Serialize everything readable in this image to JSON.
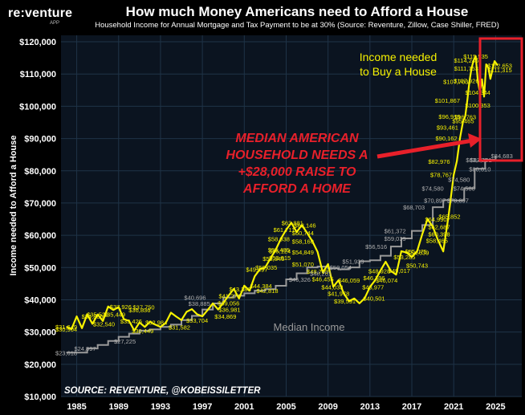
{
  "header": {
    "brand": "re:venture",
    "brand_sub": "APP",
    "title": "How much Money Americans need to Afford a House",
    "subtitle": "Household Income for Annual Mortgage and Tax Payment to be at 30% (Source: Reventure, Zillow, Case Shiller, FRED)"
  },
  "colors": {
    "background": "#000000",
    "plot_background": "#0b1420",
    "grid": "#1f3347",
    "income_needed": "#f7f200",
    "median_income": "#9a9a9a",
    "annotation_red": "#e8202a",
    "highlight_box": "#e8202a"
  },
  "chart_data": {
    "type": "line",
    "title": "How much Money Americans need to Afford a House",
    "ylabel": "Income needed to Afford a House",
    "xlabel": "",
    "xlim": [
      1983.5,
      2027.5
    ],
    "ylim": [
      10000,
      122000
    ],
    "x_ticks": [
      "1985",
      "1989",
      "1993",
      "1997",
      "2001",
      "2005",
      "2009",
      "2013",
      "2017",
      "2021",
      "2025"
    ],
    "y_ticks": [
      "$10,000",
      "$20,000",
      "$30,000",
      "$40,000",
      "$50,000",
      "$60,000",
      "$70,000",
      "$80,000",
      "$90,000",
      "$100,000",
      "$110,000",
      "$120,000"
    ],
    "grid": true,
    "series": [
      {
        "name": "Income needed to Buy a House",
        "x": [
          1984.0,
          1984.5,
          1985.0,
          1985.5,
          1986.0,
          1986.5,
          1987.0,
          1987.5,
          1988.0,
          1988.5,
          1989.0,
          1989.5,
          1990.0,
          1990.5,
          1991.0,
          1991.5,
          1992.0,
          1992.5,
          1993.0,
          1993.5,
          1994.0,
          1994.5,
          1995.0,
          1995.5,
          1996.0,
          1996.5,
          1997.0,
          1997.5,
          1998.0,
          1998.5,
          1999.0,
          1999.5,
          2000.0,
          2000.5,
          2001.0,
          2001.5,
          2002.0,
          2002.5,
          2003.0,
          2003.5,
          2004.0,
          2004.5,
          2005.0,
          2005.5,
          2006.0,
          2006.5,
          2007.0,
          2007.5,
          2008.0,
          2008.5,
          2009.0,
          2009.5,
          2010.0,
          2010.5,
          2011.0,
          2011.5,
          2012.0,
          2012.5,
          2013.0,
          2013.5,
          2014.0,
          2014.5,
          2015.0,
          2015.5,
          2016.0,
          2016.5,
          2017.0,
          2017.5,
          2018.0,
          2018.5,
          2019.0,
          2019.5,
          2020.0,
          2020.5,
          2021.0,
          2021.3,
          2021.6,
          2021.9,
          2022.1,
          2022.3,
          2022.5,
          2022.7,
          2022.9,
          2023.1,
          2023.3,
          2023.5,
          2023.7,
          2023.9,
          2024.1,
          2024.3,
          2024.5,
          2024.7,
          2024.9,
          2025.2
        ],
        "values": [
          31649,
          30904,
          34855,
          31200,
          35528,
          32540,
          35449,
          33426,
          37926,
          36836,
          37750,
          34000,
          33426,
          30449,
          32984,
          31582,
          33200,
          32300,
          31582,
          32800,
          36000,
          34800,
          33704,
          36300,
          37100,
          35500,
          34869,
          36800,
          38885,
          36981,
          39056,
          41274,
          43388,
          40400,
          44384,
          42818,
          47300,
          49497,
          50035,
          52845,
          55486,
          58938,
          61711,
          63881,
          61000,
          63146,
          60744,
          58160,
          54849,
          48455,
          51070,
          44033,
          46059,
          41978,
          39591,
          40400,
          38900,
          40501,
          43977,
          46074,
          49017,
          51800,
          48928,
          47800,
          55075,
          54639,
          53285,
          55000,
          60398,
          64990,
          62687,
          58465,
          55000,
          65852,
          78767,
          82976,
          90162,
          95465,
          96919,
          101867,
          107703,
          111753,
          114246,
          115535,
          107926,
          104344,
          108353,
          103000,
          113000,
          112000,
          108500,
          111315,
          114000,
          112653
        ]
      },
      {
        "name": "Median Income",
        "x": [
          1984.0,
          1985.0,
          1986.0,
          1987.0,
          1988.0,
          1989.0,
          1990.0,
          1991.0,
          1992.0,
          1993.0,
          1994.0,
          1995.0,
          1996.0,
          1997.0,
          1998.0,
          1999.0,
          2000.0,
          2001.0,
          2002.0,
          2003.0,
          2004.0,
          2005.0,
          2006.0,
          2007.0,
          2008.0,
          2009.0,
          2010.0,
          2011.0,
          2012.0,
          2013.0,
          2014.0,
          2015.0,
          2016.0,
          2017.0,
          2018.0,
          2019.0,
          2020.0,
          2021.0,
          2022.0,
          2023.0,
          2024.0,
          2025.0
        ],
        "values": [
          23618,
          23618,
          24897,
          26000,
          27225,
          28500,
          29500,
          30449,
          30800,
          31582,
          32300,
          33704,
          35000,
          36981,
          38885,
          40696,
          41274,
          42000,
          42818,
          43300,
          44334,
          46326,
          48201,
          50054,
          50303,
          49777,
          49445,
          50054,
          51939,
          52250,
          53657,
          56516,
          59039,
          61372,
          63179,
          68703,
          70897,
          70784,
          74580,
          80610,
          83431,
          84683
        ]
      }
    ],
    "data_labels": [
      {
        "x": 1984.0,
        "y": 31649,
        "text": "$31,649",
        "color": "yellow"
      },
      {
        "x": 1984.0,
        "y": 30904,
        "text": "$30,904",
        "color": "yellow"
      },
      {
        "x": 1986.5,
        "y": 34855,
        "text": "$34,855",
        "color": "yellow"
      },
      {
        "x": 1987.0,
        "y": 35528,
        "text": "$35,528",
        "color": "yellow"
      },
      {
        "x": 1988.6,
        "y": 35449,
        "text": "$35,449",
        "color": "yellow"
      },
      {
        "x": 1987.6,
        "y": 32540,
        "text": "$32,540",
        "color": "yellow"
      },
      {
        "x": 1990.2,
        "y": 33426,
        "text": "$33,426",
        "color": "yellow"
      },
      {
        "x": 1989.2,
        "y": 37926,
        "text": "$37,926",
        "color": "yellow"
      },
      {
        "x": 1991.4,
        "y": 37750,
        "text": "$37,750",
        "color": "yellow"
      },
      {
        "x": 1991.0,
        "y": 36836,
        "text": "$36,836",
        "color": "yellow"
      },
      {
        "x": 1992.6,
        "y": 32984,
        "text": "$32,984",
        "color": "yellow"
      },
      {
        "x": 1991.3,
        "y": 30449,
        "text": "$30,449",
        "color": "yellow"
      },
      {
        "x": 1994.8,
        "y": 31582,
        "text": "$31,582",
        "color": "yellow"
      },
      {
        "x": 1996.5,
        "y": 33704,
        "text": "$33,704",
        "color": "yellow"
      },
      {
        "x": 1999.2,
        "y": 34869,
        "text": "$34,869",
        "color": "yellow"
      },
      {
        "x": 1999.6,
        "y": 36981,
        "text": "$36,981",
        "color": "yellow"
      },
      {
        "x": 1999.5,
        "y": 39056,
        "text": "$39,056",
        "color": "yellow"
      },
      {
        "x": 1999.6,
        "y": 41274,
        "text": "$41,274",
        "color": "yellow"
      },
      {
        "x": 2000.6,
        "y": 43388,
        "text": "$43,388",
        "color": "yellow"
      },
      {
        "x": 2002.6,
        "y": 44384,
        "text": "$44,384",
        "color": "yellow"
      },
      {
        "x": 2003.2,
        "y": 42818,
        "text": "$42,818",
        "color": "yellow"
      },
      {
        "x": 2002.2,
        "y": 49497,
        "text": "$49,497",
        "color": "yellow"
      },
      {
        "x": 2003.1,
        "y": 50035,
        "text": "$50,035",
        "color": "yellow"
      },
      {
        "x": 2003.8,
        "y": 52845,
        "text": "$52,845",
        "color": "yellow"
      },
      {
        "x": 2004.3,
        "y": 55485,
        "text": "$55,485",
        "color": "yellow"
      },
      {
        "x": 2004.3,
        "y": 58938,
        "text": "$58,938",
        "color": "yellow"
      },
      {
        "x": 2004.8,
        "y": 61711,
        "text": "$61,711",
        "color": "yellow"
      },
      {
        "x": 2005.6,
        "y": 63881,
        "text": "$63,881",
        "color": "yellow"
      },
      {
        "x": 2006.8,
        "y": 63146,
        "text": "$63,146",
        "color": "yellow"
      },
      {
        "x": 2006.6,
        "y": 60744,
        "text": "$60,744",
        "color": "yellow"
      },
      {
        "x": 2006.6,
        "y": 58160,
        "text": "$58,160",
        "color": "yellow"
      },
      {
        "x": 2006.6,
        "y": 54849,
        "text": "$54,849",
        "color": "yellow"
      },
      {
        "x": 2004.4,
        "y": 55124,
        "text": "$55,124",
        "color": "yellow"
      },
      {
        "x": 2004.4,
        "y": 53015,
        "text": "$53,015",
        "color": "yellow"
      },
      {
        "x": 2006.6,
        "y": 51070,
        "text": "$51,070",
        "color": "yellow"
      },
      {
        "x": 2008.0,
        "y": 48799,
        "text": "$48,799",
        "color": "yellow"
      },
      {
        "x": 2008.5,
        "y": 46455,
        "text": "$46,455",
        "color": "yellow"
      },
      {
        "x": 2009.4,
        "y": 44033,
        "text": "$44,033",
        "color": "yellow"
      },
      {
        "x": 2010.0,
        "y": 41978,
        "text": "$41,978",
        "color": "yellow"
      },
      {
        "x": 2010.6,
        "y": 39591,
        "text": "$39,591",
        "color": "yellow"
      },
      {
        "x": 2011.0,
        "y": 46059,
        "text": "$46,059",
        "color": "yellow"
      },
      {
        "x": 2013.4,
        "y": 40501,
        "text": "$40,501",
        "color": "yellow"
      },
      {
        "x": 2013.3,
        "y": 43977,
        "text": "$43,977",
        "color": "yellow"
      },
      {
        "x": 2014.6,
        "y": 46074,
        "text": "$46,074",
        "color": "yellow"
      },
      {
        "x": 2013.4,
        "y": 46796,
        "text": "$46,796",
        "color": "yellow"
      },
      {
        "x": 2013.9,
        "y": 48928,
        "text": "$48,928",
        "color": "yellow"
      },
      {
        "x": 2015.8,
        "y": 49017,
        "text": "$49,017",
        "color": "yellow"
      },
      {
        "x": 2016.3,
        "y": 53285,
        "text": "$53,285",
        "color": "yellow"
      },
      {
        "x": 2017.4,
        "y": 55075,
        "text": "$55,075",
        "color": "yellow"
      },
      {
        "x": 2017.6,
        "y": 54639,
        "text": "$54,639",
        "color": "yellow"
      },
      {
        "x": 2017.5,
        "y": 50743,
        "text": "$50,743",
        "color": "yellow"
      },
      {
        "x": 2019.4,
        "y": 58465,
        "text": "$58,465",
        "color": "yellow"
      },
      {
        "x": 2019.6,
        "y": 60398,
        "text": "$60,398",
        "color": "yellow"
      },
      {
        "x": 2019.6,
        "y": 62687,
        "text": "$62,687",
        "color": "yellow"
      },
      {
        "x": 2019.3,
        "y": 64990,
        "text": "$64,990",
        "color": "yellow"
      },
      {
        "x": 2020.6,
        "y": 65852,
        "text": "$65,852",
        "color": "yellow"
      },
      {
        "x": 2019.8,
        "y": 78767,
        "text": "$78,767",
        "color": "yellow"
      },
      {
        "x": 2019.6,
        "y": 82976,
        "text": "$82,976",
        "color": "yellow"
      },
      {
        "x": 2020.3,
        "y": 90162,
        "text": "$90,162",
        "color": "yellow"
      },
      {
        "x": 2020.4,
        "y": 93461,
        "text": "$93,461",
        "color": "yellow"
      },
      {
        "x": 2020.6,
        "y": 96919,
        "text": "$96,919",
        "color": "yellow"
      },
      {
        "x": 2020.4,
        "y": 101867,
        "text": "$101,867",
        "color": "yellow"
      },
      {
        "x": 2021.2,
        "y": 107703,
        "text": "$107,703",
        "color": "yellow"
      },
      {
        "x": 2022.2,
        "y": 111753,
        "text": "$111,753",
        "color": "yellow"
      },
      {
        "x": 2022.2,
        "y": 114246,
        "text": "$114,246",
        "color": "yellow"
      },
      {
        "x": 2023.1,
        "y": 115535,
        "text": "$115,535",
        "color": "yellow"
      },
      {
        "x": 2022.2,
        "y": 107926,
        "text": "$107,926",
        "color": "yellow"
      },
      {
        "x": 2022.1,
        "y": 96763,
        "text": "$96,763",
        "color": "yellow"
      },
      {
        "x": 2021.9,
        "y": 95465,
        "text": "$95,465",
        "color": "yellow"
      },
      {
        "x": 2023.3,
        "y": 104344,
        "text": "$104,344",
        "color": "yellow"
      },
      {
        "x": 2023.3,
        "y": 100353,
        "text": "$100,353",
        "color": "yellow"
      },
      {
        "x": 2025.4,
        "y": 112653,
        "text": "$112,653",
        "color": "yellow"
      },
      {
        "x": 2025.4,
        "y": 111315,
        "text": "$111,315",
        "color": "yellow"
      },
      {
        "x": 1984.0,
        "y": 23618,
        "text": "$23,618",
        "color": "gray"
      },
      {
        "x": 1985.8,
        "y": 24897,
        "text": "$24,897",
        "color": "gray"
      },
      {
        "x": 1989.6,
        "y": 27225,
        "text": "$27,225",
        "color": "gray"
      },
      {
        "x": 1996.3,
        "y": 40696,
        "text": "$40,696",
        "color": "gray"
      },
      {
        "x": 1996.7,
        "y": 38885,
        "text": "$38,885",
        "color": "gray"
      },
      {
        "x": 2006.3,
        "y": 46326,
        "text": "$46,326",
        "color": "gray"
      },
      {
        "x": 2008.3,
        "y": 48201,
        "text": "$48,201",
        "color": "gray"
      },
      {
        "x": 2010.2,
        "y": 50054,
        "text": "$50,054",
        "color": "gray"
      },
      {
        "x": 2011.4,
        "y": 51939,
        "text": "$51,939",
        "color": "gray"
      },
      {
        "x": 2013.6,
        "y": 56516,
        "text": "$56,516",
        "color": "gray"
      },
      {
        "x": 2015.4,
        "y": 59039,
        "text": "$59,039",
        "color": "gray"
      },
      {
        "x": 2015.4,
        "y": 61372,
        "text": "$61,372",
        "color": "gray"
      },
      {
        "x": 2017.2,
        "y": 68703,
        "text": "$68,703",
        "color": "gray"
      },
      {
        "x": 2019.2,
        "y": 70897,
        "text": "$70,897",
        "color": "gray"
      },
      {
        "x": 2021.4,
        "y": 70897,
        "text": "$70,897",
        "color": "gray"
      },
      {
        "x": 2019.0,
        "y": 74580,
        "text": "$74,580",
        "color": "gray"
      },
      {
        "x": 2021.5,
        "y": 77300,
        "text": "$74,580",
        "color": "gray"
      },
      {
        "x": 2022.0,
        "y": 74580,
        "text": "$74,580",
        "color": "gray"
      },
      {
        "x": 2023.2,
        "y": 83431,
        "text": "$83,431",
        "color": "gray"
      },
      {
        "x": 2023.5,
        "y": 80610,
        "text": "$80,610",
        "color": "gray"
      },
      {
        "x": 2023.6,
        "y": 83431,
        "text": "$83,431",
        "color": "gray"
      },
      {
        "x": 2025.6,
        "y": 84683,
        "text": "$84,683",
        "color": "gray"
      }
    ],
    "annotations": {
      "income_needed_label_lines": [
        "Income needed",
        "to Buy a House"
      ],
      "median_income_label": "Median Income",
      "callout_lines": [
        "MEDIAN AMERICAN",
        "HOUSEHOLD NEEDS A",
        "+$28,000 RAISE TO",
        "AFFORD A HOME"
      ],
      "source": "SOURCE: REVENTURE, @KOBEISSILETTER"
    }
  }
}
